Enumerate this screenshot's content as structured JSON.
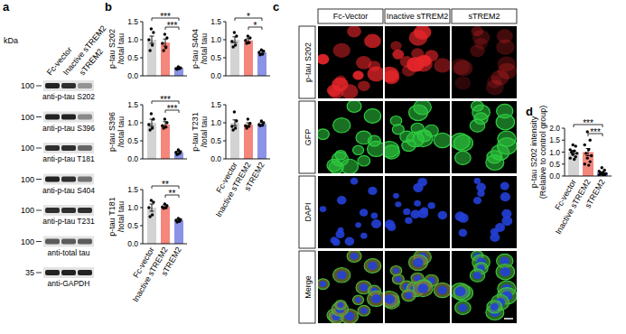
{
  "panel_labels": [
    "a",
    "b",
    "c",
    "d"
  ],
  "blot": {
    "kda_label": "kDa",
    "lanes": [
      "Fc-vector",
      "Inactive sTREM2",
      "sTREM2"
    ],
    "rows": [
      {
        "marker": 100,
        "label": "anti-p-tau S202",
        "intensities": [
          0.85,
          0.8,
          0.35
        ]
      },
      {
        "marker": 100,
        "label": "anti-p-tau S396",
        "intensities": [
          0.85,
          0.85,
          0.4
        ]
      },
      {
        "marker": 100,
        "label": "anti-p-tau T181",
        "intensities": [
          0.8,
          0.8,
          0.55
        ]
      },
      {
        "marker": 100,
        "label": "anti-p-tau S404",
        "intensities": [
          0.85,
          0.8,
          0.5
        ]
      },
      {
        "marker": 100,
        "label": "anti-p-tau T231",
        "intensities": [
          0.8,
          0.8,
          0.8
        ]
      },
      {
        "marker": 100,
        "label": "anti-total tau",
        "intensities": [
          0.6,
          0.6,
          0.6
        ]
      },
      {
        "marker": 35,
        "label": "anti-GAPDH",
        "intensities": [
          0.85,
          0.85,
          0.85
        ]
      }
    ]
  },
  "chart_data": [
    {
      "type": "bar",
      "y_label": [
        "p-tau S202",
        "/total tau"
      ],
      "categories": [
        null,
        null,
        null
      ],
      "values": [
        1.0,
        0.92,
        0.22
      ],
      "errors": [
        0.1,
        0.1,
        0.02
      ],
      "points": [
        [
          1.3,
          1.2,
          1.0,
          0.85,
          0.7
        ],
        [
          1.15,
          1.05,
          0.9,
          0.78,
          0.7
        ],
        [
          0.25,
          0.22,
          0.2,
          0.2,
          0.18
        ]
      ],
      "colors": [
        "#d3d3d3",
        "#f4867c",
        "#8b93e6"
      ],
      "ylim": [
        0,
        1.5
      ],
      "yticks": [
        {
          "value": 0,
          "label": "0.0"
        },
        {
          "value": 0.5,
          "label": "0.5"
        },
        {
          "value": 1.0,
          "label": "1.0"
        },
        {
          "value": 1.5,
          "label": "1.5"
        }
      ],
      "comparisons": [
        {
          "groups": [
            0,
            2
          ],
          "label": "***"
        },
        {
          "groups": [
            1,
            2
          ],
          "label": "***"
        }
      ]
    },
    {
      "type": "bar",
      "y_label": [
        "p-tau S404",
        "/total tau"
      ],
      "categories": [
        null,
        null,
        null
      ],
      "values": [
        1.0,
        0.98,
        0.65
      ],
      "errors": [
        0.08,
        0.05,
        0.04
      ],
      "points": [
        [
          1.2,
          1.1,
          0.95,
          0.85,
          0.8
        ],
        [
          1.1,
          1.05,
          0.98,
          0.92,
          0.9
        ],
        [
          0.72,
          0.68,
          0.65,
          0.6,
          0.58
        ]
      ],
      "colors": [
        "#d3d3d3",
        "#f4867c",
        "#8b93e6"
      ],
      "ylim": [
        0,
        1.5
      ],
      "yticks": [
        {
          "value": 0,
          "label": "0.0"
        },
        {
          "value": 0.5,
          "label": "0.5"
        },
        {
          "value": 1.0,
          "label": "1.0"
        },
        {
          "value": 1.5,
          "label": "1.5"
        }
      ],
      "comparisons": [
        {
          "groups": [
            0,
            2
          ],
          "label": "*"
        },
        {
          "groups": [
            1,
            2
          ],
          "label": "*"
        }
      ]
    },
    {
      "type": "bar",
      "y_label": [
        "p-tau S396",
        "/total tau"
      ],
      "categories": [
        null,
        null,
        null
      ],
      "values": [
        1.0,
        0.95,
        0.18
      ],
      "errors": [
        0.1,
        0.08,
        0.03
      ],
      "points": [
        [
          1.25,
          1.1,
          0.95,
          0.85,
          0.8
        ],
        [
          1.1,
          1.0,
          0.92,
          0.88,
          0.85
        ],
        [
          0.25,
          0.2,
          0.18,
          0.15,
          0.12
        ]
      ],
      "colors": [
        "#d3d3d3",
        "#f4867c",
        "#8b93e6"
      ],
      "ylim": [
        0,
        1.5
      ],
      "yticks": [
        {
          "value": 0,
          "label": "0.0"
        },
        {
          "value": 0.5,
          "label": "0.5"
        },
        {
          "value": 1.0,
          "label": "1.0"
        },
        {
          "value": 1.5,
          "label": "1.5"
        }
      ],
      "comparisons": [
        {
          "groups": [
            0,
            2
          ],
          "label": "***"
        },
        {
          "groups": [
            1,
            2
          ],
          "label": "***"
        }
      ]
    },
    {
      "type": "bar",
      "y_label": [
        "p-tau T231",
        "/total tau"
      ],
      "categories": [
        "Fc-vector",
        "Inactive sTREM2",
        "sTREM2"
      ],
      "values": [
        1.0,
        0.95,
        0.97
      ],
      "errors": [
        0.08,
        0.05,
        0.04
      ],
      "points": [
        [
          1.3,
          1.05,
          0.9,
          0.85,
          0.8
        ],
        [
          1.1,
          0.98,
          0.92,
          0.9,
          0.85
        ],
        [
          1.05,
          1.0,
          0.95,
          0.93,
          0.92
        ]
      ],
      "colors": [
        "#d3d3d3",
        "#f4867c",
        "#8b93e6"
      ],
      "ylim": [
        0,
        1.5
      ],
      "yticks": [
        {
          "value": 0,
          "label": "0.0"
        },
        {
          "value": 0.5,
          "label": "0.5"
        },
        {
          "value": 1.0,
          "label": "1.0"
        },
        {
          "value": 1.5,
          "label": "1.5"
        }
      ]
    },
    {
      "type": "bar",
      "y_label": [
        "p-tau T181",
        "/total tau"
      ],
      "categories": [
        "Fc-vector",
        "Inactive sTREM2",
        "sTREM2"
      ],
      "values": [
        1.0,
        1.03,
        0.65
      ],
      "errors": [
        0.1,
        0.05,
        0.03
      ],
      "points": [
        [
          1.2,
          1.15,
          1.0,
          0.8,
          0.75
        ],
        [
          1.1,
          1.05,
          1.02,
          1.0,
          0.98
        ],
        [
          0.7,
          0.67,
          0.65,
          0.62,
          0.6
        ]
      ],
      "colors": [
        "#d3d3d3",
        "#f4867c",
        "#8b93e6"
      ],
      "ylim": [
        0,
        1.5
      ],
      "yticks": [
        {
          "value": 0,
          "label": "0.0"
        },
        {
          "value": 0.5,
          "label": "0.5"
        },
        {
          "value": 1.0,
          "label": "1.0"
        },
        {
          "value": 1.5,
          "label": "1.5"
        }
      ],
      "comparisons": [
        {
          "groups": [
            0,
            2
          ],
          "label": "**"
        },
        {
          "groups": [
            1,
            2
          ],
          "label": "**"
        }
      ]
    },
    {
      "type": "bar",
      "y_label": [
        "p-tau S202  intensity",
        "(Relative to control group)"
      ],
      "categories": [
        "Fc-vector",
        "Inactive sTREM2",
        "sTREM2"
      ],
      "values": [
        1.0,
        1.0,
        0.15
      ],
      "errors": [
        0.07,
        0.15,
        0.03
      ],
      "points": [
        [
          1.3,
          1.25,
          1.1,
          1.05,
          1.0,
          0.95,
          0.9,
          0.8,
          0.75,
          0.7
        ],
        [
          1.85,
          1.5,
          1.3,
          1.1,
          0.95,
          0.85,
          0.75,
          0.6,
          0.5,
          0.45
        ],
        [
          0.35,
          0.25,
          0.2,
          0.15,
          0.12,
          0.1,
          0.08,
          0.05,
          0.05,
          0.03
        ]
      ],
      "colors": [
        "#d3d3d3",
        "#f4867c",
        "#8b93e6"
      ],
      "ylim": [
        0,
        2.0
      ],
      "yticks": [
        {
          "value": 0,
          "label": "0.0"
        },
        {
          "value": 0.5,
          "label": "0.5"
        },
        {
          "value": 1.0,
          "label": "1.0"
        },
        {
          "value": 1.5,
          "label": "1.5"
        },
        {
          "value": 2.0,
          "label": "2.0"
        }
      ],
      "comparisons": [
        {
          "groups": [
            0,
            2
          ],
          "label": "***"
        },
        {
          "groups": [
            1,
            2
          ],
          "label": "***"
        }
      ]
    }
  ],
  "microscopy": {
    "columns": [
      "Fc-Vector",
      "Inactive sTREM2",
      "sTREM2"
    ],
    "rows": [
      {
        "label": "p-tau S202",
        "color": "#e8262a",
        "intensities": [
          1.0,
          1.0,
          0.35
        ]
      },
      {
        "label": "GFP",
        "color": "#2ecc40"
      },
      {
        "label": "DAPI",
        "color": "#2340d8"
      },
      {
        "label": "Merge"
      }
    ]
  }
}
